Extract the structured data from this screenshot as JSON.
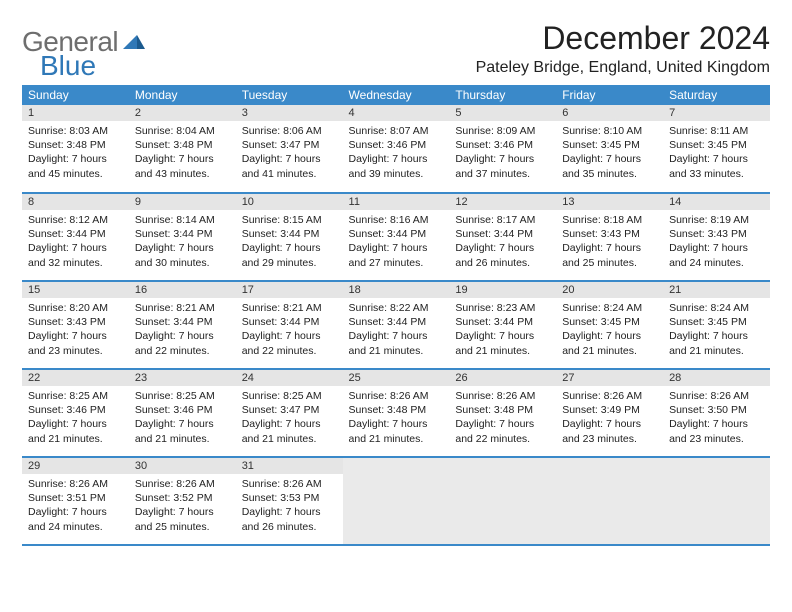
{
  "brand": {
    "general": "General",
    "blue": "Blue"
  },
  "title": "December 2024",
  "location": "Pateley Bridge, England, United Kingdom",
  "weekday_header_bg": "#3a89c9",
  "weekdays": [
    "Sunday",
    "Monday",
    "Tuesday",
    "Wednesday",
    "Thursday",
    "Friday",
    "Saturday"
  ],
  "days": [
    {
      "n": "1",
      "sunrise": "8:03 AM",
      "sunset": "3:48 PM",
      "daylight": "7 hours and 45 minutes."
    },
    {
      "n": "2",
      "sunrise": "8:04 AM",
      "sunset": "3:48 PM",
      "daylight": "7 hours and 43 minutes."
    },
    {
      "n": "3",
      "sunrise": "8:06 AM",
      "sunset": "3:47 PM",
      "daylight": "7 hours and 41 minutes."
    },
    {
      "n": "4",
      "sunrise": "8:07 AM",
      "sunset": "3:46 PM",
      "daylight": "7 hours and 39 minutes."
    },
    {
      "n": "5",
      "sunrise": "8:09 AM",
      "sunset": "3:46 PM",
      "daylight": "7 hours and 37 minutes."
    },
    {
      "n": "6",
      "sunrise": "8:10 AM",
      "sunset": "3:45 PM",
      "daylight": "7 hours and 35 minutes."
    },
    {
      "n": "7",
      "sunrise": "8:11 AM",
      "sunset": "3:45 PM",
      "daylight": "7 hours and 33 minutes."
    },
    {
      "n": "8",
      "sunrise": "8:12 AM",
      "sunset": "3:44 PM",
      "daylight": "7 hours and 32 minutes."
    },
    {
      "n": "9",
      "sunrise": "8:14 AM",
      "sunset": "3:44 PM",
      "daylight": "7 hours and 30 minutes."
    },
    {
      "n": "10",
      "sunrise": "8:15 AM",
      "sunset": "3:44 PM",
      "daylight": "7 hours and 29 minutes."
    },
    {
      "n": "11",
      "sunrise": "8:16 AM",
      "sunset": "3:44 PM",
      "daylight": "7 hours and 27 minutes."
    },
    {
      "n": "12",
      "sunrise": "8:17 AM",
      "sunset": "3:44 PM",
      "daylight": "7 hours and 26 minutes."
    },
    {
      "n": "13",
      "sunrise": "8:18 AM",
      "sunset": "3:43 PM",
      "daylight": "7 hours and 25 minutes."
    },
    {
      "n": "14",
      "sunrise": "8:19 AM",
      "sunset": "3:43 PM",
      "daylight": "7 hours and 24 minutes."
    },
    {
      "n": "15",
      "sunrise": "8:20 AM",
      "sunset": "3:43 PM",
      "daylight": "7 hours and 23 minutes."
    },
    {
      "n": "16",
      "sunrise": "8:21 AM",
      "sunset": "3:44 PM",
      "daylight": "7 hours and 22 minutes."
    },
    {
      "n": "17",
      "sunrise": "8:21 AM",
      "sunset": "3:44 PM",
      "daylight": "7 hours and 22 minutes."
    },
    {
      "n": "18",
      "sunrise": "8:22 AM",
      "sunset": "3:44 PM",
      "daylight": "7 hours and 21 minutes."
    },
    {
      "n": "19",
      "sunrise": "8:23 AM",
      "sunset": "3:44 PM",
      "daylight": "7 hours and 21 minutes."
    },
    {
      "n": "20",
      "sunrise": "8:24 AM",
      "sunset": "3:45 PM",
      "daylight": "7 hours and 21 minutes."
    },
    {
      "n": "21",
      "sunrise": "8:24 AM",
      "sunset": "3:45 PM",
      "daylight": "7 hours and 21 minutes."
    },
    {
      "n": "22",
      "sunrise": "8:25 AM",
      "sunset": "3:46 PM",
      "daylight": "7 hours and 21 minutes."
    },
    {
      "n": "23",
      "sunrise": "8:25 AM",
      "sunset": "3:46 PM",
      "daylight": "7 hours and 21 minutes."
    },
    {
      "n": "24",
      "sunrise": "8:25 AM",
      "sunset": "3:47 PM",
      "daylight": "7 hours and 21 minutes."
    },
    {
      "n": "25",
      "sunrise": "8:26 AM",
      "sunset": "3:48 PM",
      "daylight": "7 hours and 21 minutes."
    },
    {
      "n": "26",
      "sunrise": "8:26 AM",
      "sunset": "3:48 PM",
      "daylight": "7 hours and 22 minutes."
    },
    {
      "n": "27",
      "sunrise": "8:26 AM",
      "sunset": "3:49 PM",
      "daylight": "7 hours and 23 minutes."
    },
    {
      "n": "28",
      "sunrise": "8:26 AM",
      "sunset": "3:50 PM",
      "daylight": "7 hours and 23 minutes."
    },
    {
      "n": "29",
      "sunrise": "8:26 AM",
      "sunset": "3:51 PM",
      "daylight": "7 hours and 24 minutes."
    },
    {
      "n": "30",
      "sunrise": "8:26 AM",
      "sunset": "3:52 PM",
      "daylight": "7 hours and 25 minutes."
    },
    {
      "n": "31",
      "sunrise": "8:26 AM",
      "sunset": "3:53 PM",
      "daylight": "7 hours and 26 minutes."
    }
  ],
  "labels": {
    "sunrise": "Sunrise:",
    "sunset": "Sunset:",
    "daylight": "Daylight:"
  },
  "grid": {
    "first_weekday_offset": 0,
    "trailing_empty": 4
  }
}
